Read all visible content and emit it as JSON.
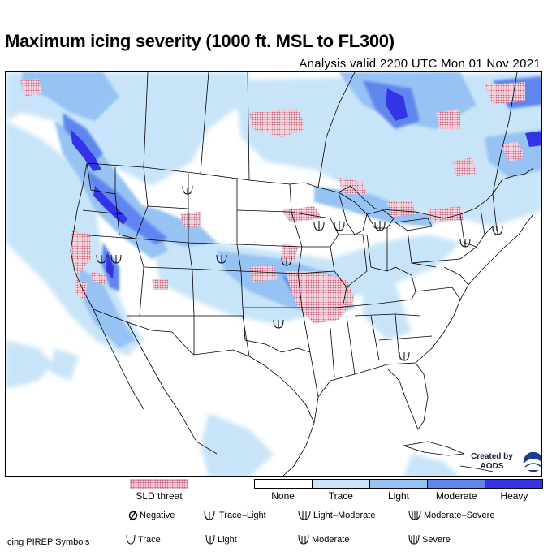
{
  "header": {
    "title": "Maximum icing severity (1000 ft. MSL to FL300)",
    "valid_time": "Analysis valid 2200 UTC Mon 01 Nov 2021"
  },
  "map": {
    "region": "Continental United States",
    "credit": "Created by AODS",
    "colors": {
      "none": "#ffffff",
      "trace": "#c8e4f8",
      "light": "#96c3f3",
      "moderate": "#5f86ee",
      "heavy": "#3434e6",
      "sld_threat": "#c85a7a"
    }
  },
  "legend": {
    "sld_label": "SLD threat",
    "severity": [
      {
        "label": "None",
        "color": "#ffffff"
      },
      {
        "label": "Trace",
        "color": "#c8e4f8"
      },
      {
        "label": "Light",
        "color": "#96c3f3"
      },
      {
        "label": "Moderate",
        "color": "#5f86ee"
      },
      {
        "label": "Heavy",
        "color": "#3434e6"
      }
    ]
  },
  "pirep": {
    "title": "Icing PIREP Symbols",
    "symbols": [
      {
        "label": "Negative",
        "icon": "negative-icon"
      },
      {
        "label": "Trace–Light",
        "icon": "trace-light-icon"
      },
      {
        "label": "Light–Moderate",
        "icon": "light-moderate-icon"
      },
      {
        "label": "Moderate–Severe",
        "icon": "moderate-severe-icon"
      },
      {
        "label": "Trace",
        "icon": "trace-icon"
      },
      {
        "label": "Light",
        "icon": "light-icon"
      },
      {
        "label": "Moderate",
        "icon": "moderate-icon"
      },
      {
        "label": "Severe",
        "icon": "severe-icon"
      }
    ]
  }
}
